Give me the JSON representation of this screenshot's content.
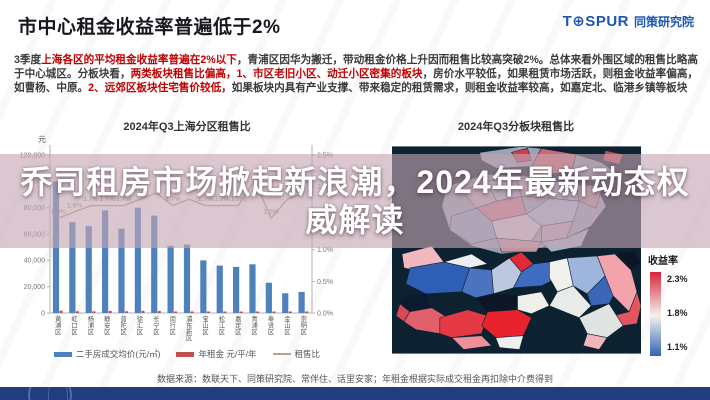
{
  "slide": {
    "title": "市中心租金收益率普遍低于2%",
    "logo": {
      "brand": "T⊕SPUR",
      "org": "同策研究院"
    },
    "paragraph_segments": [
      {
        "text": "3季度",
        "red": false
      },
      {
        "text": "上海各区的平均租金收益率普遍在2%以下",
        "red": true
      },
      {
        "text": "，青浦区因华为搬迁，带动租金价格上升因而租售比较高突破2%。总体来看外围区域的租售比略高于中心城区。分板块看，",
        "red": false
      },
      {
        "text": "两类板块租售比偏高，1、市区老旧小区、动迁小区密集的板块",
        "red": true
      },
      {
        "text": "，房价水平较低，如果租赁市场活跃，则租金收益率偏高，如曹杨、中原。",
        "red": false
      },
      {
        "text": "2、远郊区板块住宅售价较低，",
        "red": true
      },
      {
        "text": "如果板块内具有产业支撑、带来稳定的租赁需求，则租金收益率较高，如嘉定北、临港乡镇等板块",
        "red": false
      }
    ],
    "overlay": {
      "line1": "乔司租房市场掀起新浪潮，2024年最新动态权",
      "line2": "威解读"
    },
    "source_note": "数据来源：数联天下、同策研究院、常伴住、话里安家；年租金根据实际成交租金再扣除中介费得到"
  },
  "chart_data": [
    {
      "type": "bar",
      "title": "2024年Q3上海分区租售比",
      "categories": [
        "黄浦区",
        "虹口区",
        "杨浦区",
        "静安区",
        "普陀区",
        "徐汇区",
        "长宁区",
        "闵行区",
        "浦东新区",
        "宝山区",
        "松江区",
        "嘉定区",
        "青浦区",
        "奉贤区",
        "金山区",
        "崇明区"
      ],
      "series": [
        {
          "name": "二手房成交均价(元/㎡)",
          "kind": "bar",
          "axis": "left",
          "color": "#4f81bd",
          "values": [
            100000,
            69000,
            66000,
            78000,
            64000,
            80000,
            74000,
            51000,
            52000,
            40000,
            36000,
            35000,
            37000,
            23000,
            15000,
            16000
          ]
        },
        {
          "name": "年租金 元/平/年",
          "kind": "bar",
          "axis": "left",
          "color": "#c0504d",
          "values": [
            1800,
            1300,
            1300,
            1600,
            1300,
            1600,
            1500,
            1000,
            1100,
            800,
            700,
            700,
            900,
            400,
            400,
            400
          ]
        },
        {
          "name": "租售比",
          "kind": "line",
          "axis": "right",
          "color": "#b5a584",
          "values": [
            1.5,
            1.6,
            1.7,
            1.7,
            1.7,
            1.8,
            1.9,
            1.7,
            1.8,
            1.7,
            1.7,
            1.7,
            2.1,
            1.5,
            1.8,
            1.9
          ],
          "point_labels": [
            "1.5%",
            "1.6%",
            "1.7%",
            "1.7%",
            "1.7%",
            null,
            null,
            "1.7%",
            null,
            "1.7%",
            "1.7%",
            "1.7%",
            null,
            "1.5%",
            null,
            null
          ]
        }
      ],
      "left_axis": {
        "label": "元",
        "max": 120000,
        "ticks": [
          "120,000",
          "100,000",
          "80,000",
          "60,000",
          "40,000",
          "20,000",
          "0"
        ]
      },
      "right_axis": {
        "max": 2.5,
        "ticks": [
          "2.5%",
          "2.0%",
          "1.5%",
          "1.0%",
          "0.5%",
          "0.0%"
        ]
      },
      "legend_position": "bottom",
      "grid": false
    },
    {
      "type": "heatmap",
      "title": "2024年Q3分板块租售比",
      "legend": {
        "title": "收益率",
        "max_label": "2.3%",
        "mid_label": "1.8%",
        "min_label": "1.1%",
        "max_color": "#d7263a",
        "mid_color": "#f3f3ee",
        "min_color": "#3563b4",
        "position": "right"
      }
    }
  ]
}
